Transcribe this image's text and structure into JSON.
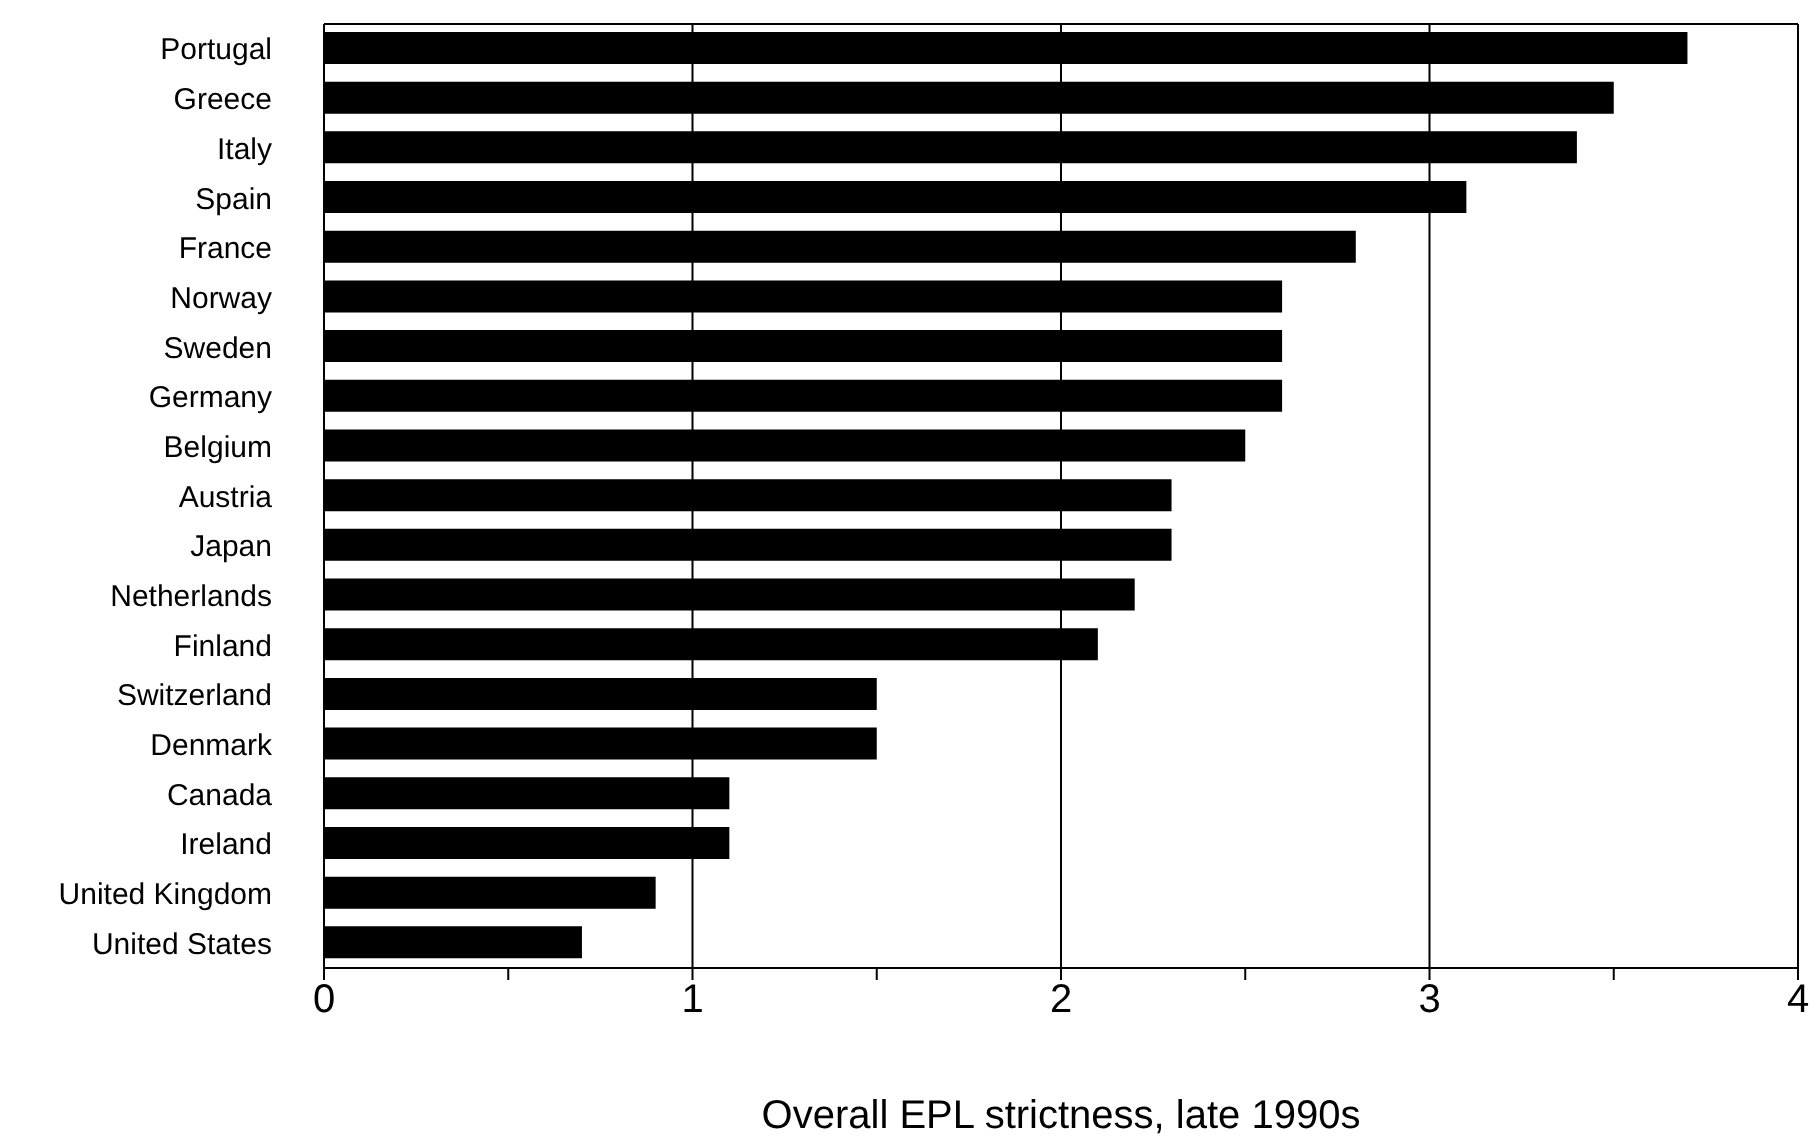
{
  "chart_data": {
    "type": "bar",
    "orientation": "horizontal",
    "xlabel": "Overall EPL strictness, late 1990s",
    "categories": [
      "Portugal",
      "Greece",
      "Italy",
      "Spain",
      "France",
      "Norway",
      "Sweden",
      "Germany",
      "Belgium",
      "Austria",
      "Japan",
      "Netherlands",
      "Finland",
      "Switzerland",
      "Denmark",
      "Canada",
      "Ireland",
      "United Kingdom",
      "United States"
    ],
    "values": [
      3.7,
      3.5,
      3.4,
      3.1,
      2.8,
      2.6,
      2.6,
      2.6,
      2.5,
      2.3,
      2.3,
      2.2,
      2.1,
      1.5,
      1.5,
      1.1,
      1.1,
      0.9,
      0.7
    ],
    "color": "#000000",
    "xlim": [
      0,
      4
    ],
    "xticks": [
      0,
      {
        "value": 0.5,
        "label": null
      },
      1,
      {
        "value": 1.5,
        "label": null
      },
      2,
      {
        "value": 2.5,
        "label": null
      },
      3,
      {
        "value": 3.5,
        "label": null
      },
      4
    ],
    "grid": "x"
  }
}
